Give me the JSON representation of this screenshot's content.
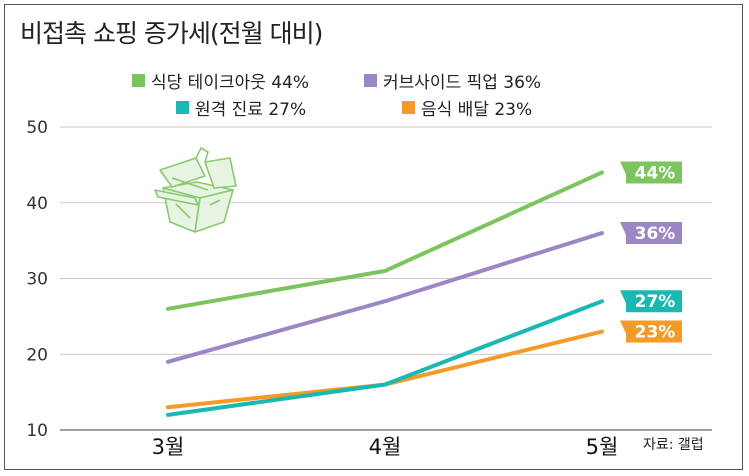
{
  "chart_data": {
    "type": "line",
    "title": "비접촉 쇼핑 증가세(전월 대비)",
    "categories": [
      "3월",
      "4월",
      "5월"
    ],
    "ylim": [
      10,
      50
    ],
    "yticks": [
      10,
      20,
      30,
      40,
      50
    ],
    "grid": true,
    "legend_position": "top",
    "series": [
      {
        "name": "식당 테이크아웃 44%",
        "color": "#7cc55e",
        "values": [
          26,
          31,
          44
        ],
        "end_label": "44%"
      },
      {
        "name": "커브사이드 픽업 36%",
        "color": "#9b87c4",
        "values": [
          19,
          27,
          36
        ],
        "end_label": "36%"
      },
      {
        "name": "원격 진료 27%",
        "color": "#1ab8b2",
        "values": [
          12,
          16,
          27
        ],
        "end_label": "27%"
      },
      {
        "name": "음식 배달 23%",
        "color": "#f39a29",
        "values": [
          13,
          16,
          23
        ],
        "end_label": "23%"
      }
    ]
  },
  "source": "자료: 갤럽",
  "decor_icon": "takeout-box-icon"
}
